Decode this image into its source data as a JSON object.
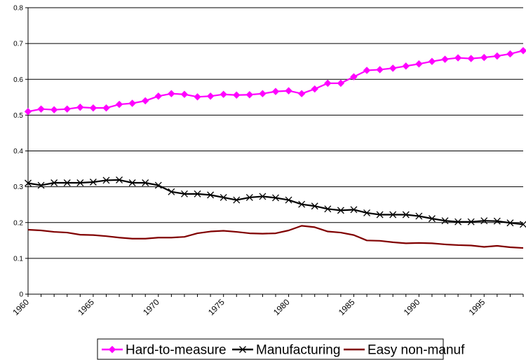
{
  "chart_data": {
    "type": "line",
    "x": [
      1960,
      1961,
      1962,
      1963,
      1964,
      1965,
      1966,
      1967,
      1968,
      1969,
      1970,
      1971,
      1972,
      1973,
      1974,
      1975,
      1976,
      1977,
      1978,
      1979,
      1980,
      1981,
      1982,
      1983,
      1984,
      1985,
      1986,
      1987,
      1988,
      1989,
      1990,
      1991,
      1992,
      1993,
      1994,
      1995,
      1996,
      1997,
      1998
    ],
    "ylim": [
      0,
      0.8
    ],
    "yticks": [
      "0",
      "0.1",
      "0.2",
      "0.3",
      "0.4",
      "0.5",
      "0.6",
      "0.7",
      "0.8"
    ],
    "xticks": [
      "1960",
      "1965",
      "1970",
      "1975",
      "1980",
      "1985",
      "1990",
      "1995"
    ],
    "xlim": [
      1960,
      1998
    ],
    "grid": "horizontal",
    "legend_position": "bottom",
    "series": [
      {
        "name": "Hard-to-measure",
        "color": "#ff00ff",
        "marker": "diamond",
        "values": [
          0.51,
          0.517,
          0.515,
          0.517,
          0.522,
          0.52,
          0.52,
          0.53,
          0.533,
          0.54,
          0.553,
          0.56,
          0.558,
          0.551,
          0.553,
          0.558,
          0.556,
          0.557,
          0.56,
          0.566,
          0.568,
          0.56,
          0.573,
          0.589,
          0.589,
          0.607,
          0.625,
          0.627,
          0.631,
          0.637,
          0.643,
          0.65,
          0.656,
          0.66,
          0.658,
          0.661,
          0.665,
          0.671,
          0.68
        ]
      },
      {
        "name": "Manufacturing",
        "color": "#000000",
        "marker": "x",
        "values": [
          0.31,
          0.304,
          0.311,
          0.311,
          0.311,
          0.313,
          0.318,
          0.319,
          0.311,
          0.311,
          0.304,
          0.286,
          0.28,
          0.28,
          0.277,
          0.27,
          0.263,
          0.27,
          0.273,
          0.269,
          0.263,
          0.251,
          0.246,
          0.238,
          0.234,
          0.236,
          0.227,
          0.222,
          0.222,
          0.222,
          0.218,
          0.211,
          0.205,
          0.202,
          0.202,
          0.205,
          0.204,
          0.199,
          0.195
        ]
      },
      {
        "name": "Easy non-manuf",
        "color": "#800000",
        "marker": "none",
        "values": [
          0.18,
          0.178,
          0.174,
          0.172,
          0.166,
          0.165,
          0.162,
          0.158,
          0.155,
          0.155,
          0.158,
          0.158,
          0.16,
          0.17,
          0.175,
          0.177,
          0.174,
          0.17,
          0.169,
          0.17,
          0.178,
          0.191,
          0.187,
          0.175,
          0.172,
          0.165,
          0.15,
          0.149,
          0.145,
          0.142,
          0.143,
          0.142,
          0.139,
          0.137,
          0.136,
          0.132,
          0.135,
          0.131,
          0.129
        ]
      }
    ]
  }
}
